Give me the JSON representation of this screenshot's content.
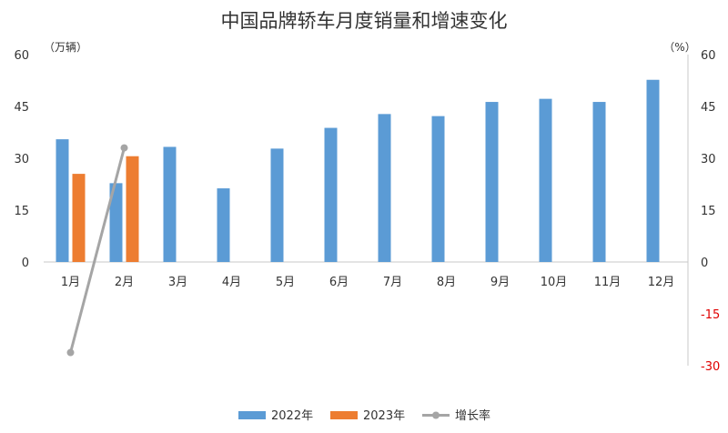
{
  "chart_data": {
    "type": "bar",
    "title": "中国品牌轿车月度销量和增速变化",
    "left_unit": "（万辆）",
    "right_unit": "（%）",
    "categories": [
      "1月",
      "2月",
      "3月",
      "4月",
      "5月",
      "6月",
      "7月",
      "8月",
      "9月",
      "10月",
      "11月",
      "12月"
    ],
    "series": [
      {
        "name": "2022年",
        "type": "bar",
        "axis": "left",
        "color": "#5b9bd5",
        "values": [
          35.5,
          22.8,
          33.3,
          21.3,
          32.8,
          38.8,
          42.8,
          42.2,
          46.3,
          47.2,
          46.3,
          52.7
        ]
      },
      {
        "name": "2023年",
        "type": "bar",
        "axis": "left",
        "color": "#ed7d31",
        "values": [
          25.5,
          30.6,
          null,
          null,
          null,
          null,
          null,
          null,
          null,
          null,
          null,
          null
        ]
      },
      {
        "name": "增长率",
        "type": "line",
        "axis": "right",
        "color": "#a5a5a5",
        "values": [
          -26.2,
          33.0,
          null,
          null,
          null,
          null,
          null,
          null,
          null,
          null,
          null,
          null
        ]
      }
    ],
    "left_axis": {
      "ylim": [
        0,
        60
      ],
      "ticks": [
        "0",
        "15",
        "30",
        "45",
        "60"
      ]
    },
    "right_axis": {
      "ylim": [
        -30,
        60
      ],
      "ticks": [
        "-30",
        "-15",
        "0",
        "15",
        "30",
        "45",
        "60"
      ],
      "negative_color": "#e00000"
    },
    "grid": false,
    "legend_position": "bottom"
  }
}
